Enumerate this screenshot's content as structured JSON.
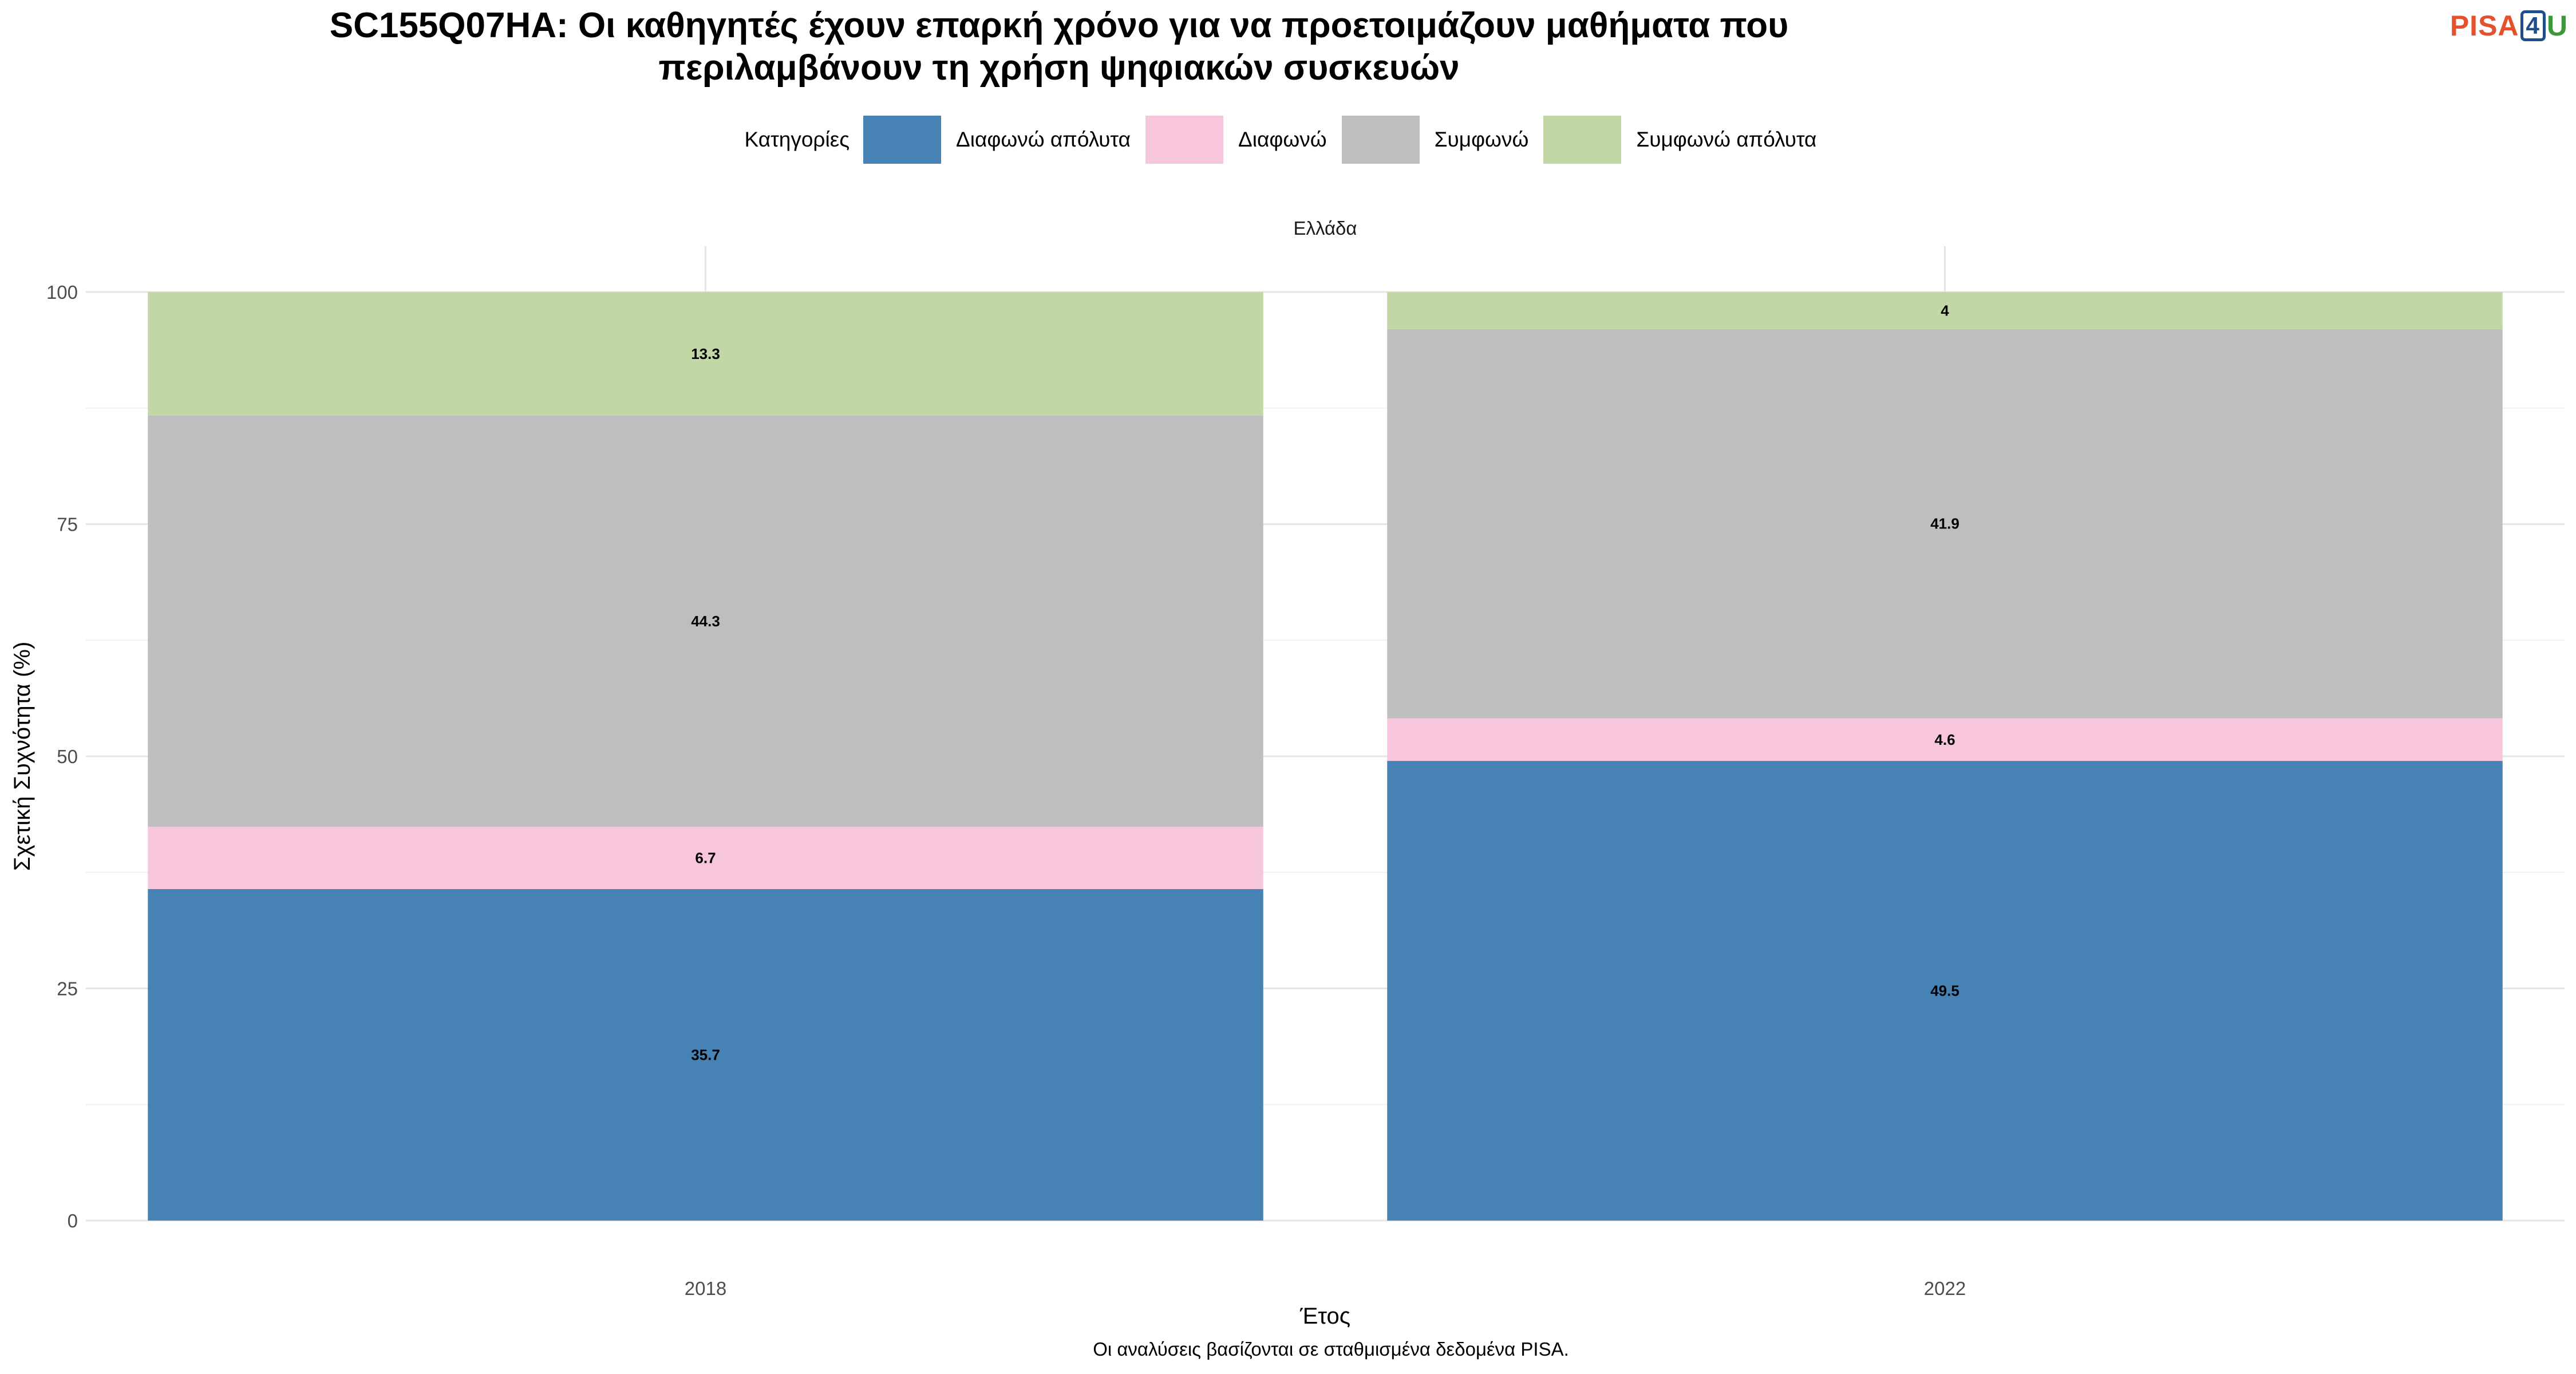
{
  "title_lines": [
    "SC155Q07HA: Οι καθηγητές έχουν επαρκή χρόνο για να προετοιμάζουν μαθήματα που",
    "περιλαμβάνουν τη χρήση ψηφιακών συσκευών"
  ],
  "logo": {
    "part1": "PISA",
    "part2": "4",
    "part3": "U"
  },
  "legend_title": "Κατηγορίες",
  "caption": "Οι αναλύσεις βασίζονται σε σταθμισμένα δεδομένα PISA.",
  "chart_data": {
    "type": "bar",
    "stacked": true,
    "panel_label": "Ελλάδα",
    "xlabel": "Έτος",
    "ylabel": "Σχετική Συχνότητα (%)",
    "ylim": [
      0,
      100
    ],
    "yticks": [
      0,
      25,
      50,
      75,
      100
    ],
    "grid": true,
    "legend_position": "top",
    "categories": [
      "2018",
      "2022"
    ],
    "series": [
      {
        "name": "Διαφωνώ απόλυτα",
        "color": "#4682b4",
        "values": [
          35.7,
          49.5
        ]
      },
      {
        "name": "Διαφωνώ",
        "color": "#f7c6dc",
        "values": [
          6.7,
          4.6
        ]
      },
      {
        "name": "Συμφωνώ",
        "color": "#bebebe",
        "values": [
          44.3,
          41.9
        ]
      },
      {
        "name": "Συμφωνώ απόλυτα",
        "color": "#c2d7a6",
        "values": [
          13.3,
          4
        ]
      }
    ]
  }
}
